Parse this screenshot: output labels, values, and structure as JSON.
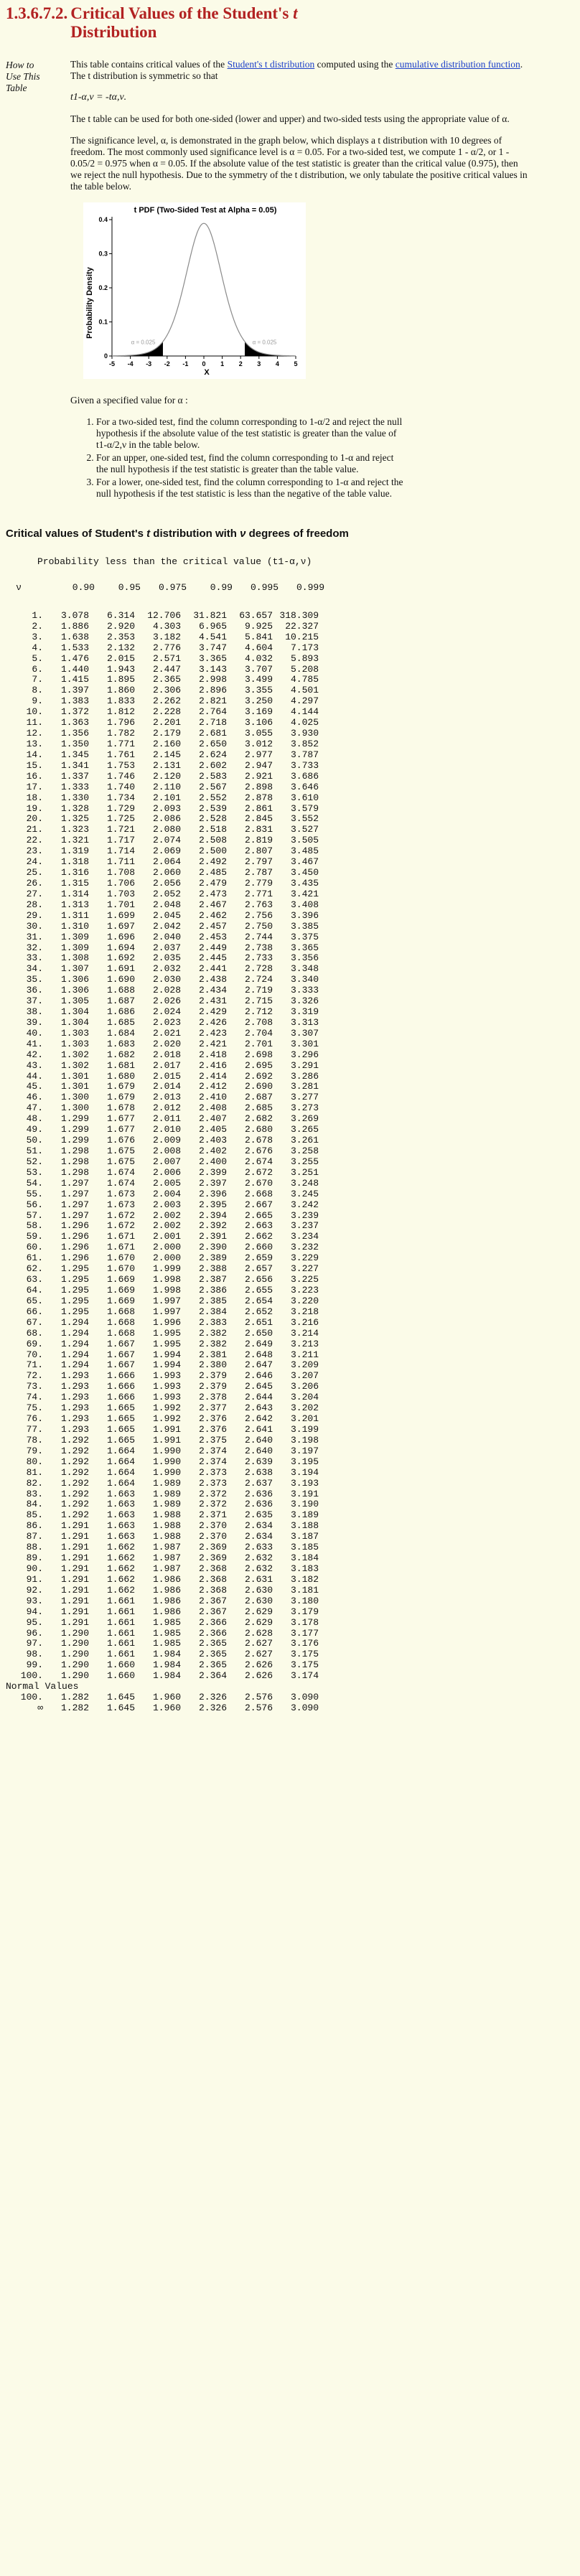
{
  "header": {
    "section_number": "1.3.6.7.2.",
    "title_prefix": "Critical Values of the Student's ",
    "title_t": "t",
    "title_suffix": " Distribution"
  },
  "intro": {
    "side_label": "How to Use This Table",
    "p1_before": "This table contains critical values of the ",
    "link1": "Student's t distribution",
    "p1_mid": " computed using the ",
    "link2": "cumulative distribution function",
    "p1_after": ". The t distribution is symmetric so that",
    "formula": "t1-α,ν = -tα,ν.",
    "p2": "The t table can be used for both one-sided (lower and upper) and two-sided tests using the appropriate value of α.",
    "p3": "The significance level, α, is demonstrated in the graph below, which displays a t distribution with 10 degrees of freedom. The most commonly used significance level is α = 0.05. For a two-sided test, we compute 1 - α/2, or 1 - 0.05/2 = 0.975 when α = 0.05. If the absolute value of the test statistic is greater than the critical value (0.975), then we reject the null hypothesis. Due to the symmetry of the t distribution, we only tabulate the positive critical values in the table below.",
    "given": "Given a specified value for α :",
    "steps": [
      "For a two-sided test, find the column corresponding to 1-α/2 and reject the null hypothesis if the absolute value of the test statistic is greater than the value of t1-α/2,ν in the table below.",
      "For an upper, one-sided test, find the column corresponding to 1-α and reject the null hypothesis if the test statistic is greater than the table value.",
      "For a lower, one-sided test, find the column corresponding to 1-α and reject the null hypothesis if the test statistic is less than the negative of the table value."
    ]
  },
  "chart_data": {
    "type": "area",
    "title": "t PDF (Two-Sided Test at Alpha = 0.05)",
    "xlabel": "X",
    "ylabel": "Probability Density",
    "xlim": [
      -5,
      5
    ],
    "ylim": [
      0,
      0.4
    ],
    "x_ticks": [
      "-5",
      "-4",
      "-3",
      "-2",
      "-1",
      "0",
      "1",
      "2",
      "3",
      "4",
      "5"
    ],
    "y_ticks": [
      "0",
      "0.1",
      "0.2",
      "0.3",
      "0.4"
    ],
    "degrees_of_freedom": 10,
    "critical_value": 2.228,
    "annotations": [
      "α = 0.025",
      "α = 0.025"
    ],
    "grid": false
  },
  "table": {
    "title_prefix": "Critical values of Student's ",
    "title_t": "t",
    "title_mid": " distribution with ",
    "title_nu": "ν",
    "title_suffix": " degrees of freedom",
    "prob_label": "Probability less than the critical value (t1-α,ν)",
    "nu_header": "ν",
    "columns": [
      "0.90",
      "0.95",
      "0.975",
      "0.99",
      "0.995",
      "0.999"
    ],
    "rows": [
      [
        "1.",
        "3.078",
        "6.314",
        "12.706",
        "31.821",
        "63.657",
        "318.309"
      ],
      [
        "2.",
        "1.886",
        "2.920",
        "4.303",
        "6.965",
        "9.925",
        "22.327"
      ],
      [
        "3.",
        "1.638",
        "2.353",
        "3.182",
        "4.541",
        "5.841",
        "10.215"
      ],
      [
        "4.",
        "1.533",
        "2.132",
        "2.776",
        "3.747",
        "4.604",
        "7.173"
      ],
      [
        "5.",
        "1.476",
        "2.015",
        "2.571",
        "3.365",
        "4.032",
        "5.893"
      ],
      [
        "6.",
        "1.440",
        "1.943",
        "2.447",
        "3.143",
        "3.707",
        "5.208"
      ],
      [
        "7.",
        "1.415",
        "1.895",
        "2.365",
        "2.998",
        "3.499",
        "4.785"
      ],
      [
        "8.",
        "1.397",
        "1.860",
        "2.306",
        "2.896",
        "3.355",
        "4.501"
      ],
      [
        "9.",
        "1.383",
        "1.833",
        "2.262",
        "2.821",
        "3.250",
        "4.297"
      ],
      [
        "10.",
        "1.372",
        "1.812",
        "2.228",
        "2.764",
        "3.169",
        "4.144"
      ],
      [
        "11.",
        "1.363",
        "1.796",
        "2.201",
        "2.718",
        "3.106",
        "4.025"
      ],
      [
        "12.",
        "1.356",
        "1.782",
        "2.179",
        "2.681",
        "3.055",
        "3.930"
      ],
      [
        "13.",
        "1.350",
        "1.771",
        "2.160",
        "2.650",
        "3.012",
        "3.852"
      ],
      [
        "14.",
        "1.345",
        "1.761",
        "2.145",
        "2.624",
        "2.977",
        "3.787"
      ],
      [
        "15.",
        "1.341",
        "1.753",
        "2.131",
        "2.602",
        "2.947",
        "3.733"
      ],
      [
        "16.",
        "1.337",
        "1.746",
        "2.120",
        "2.583",
        "2.921",
        "3.686"
      ],
      [
        "17.",
        "1.333",
        "1.740",
        "2.110",
        "2.567",
        "2.898",
        "3.646"
      ],
      [
        "18.",
        "1.330",
        "1.734",
        "2.101",
        "2.552",
        "2.878",
        "3.610"
      ],
      [
        "19.",
        "1.328",
        "1.729",
        "2.093",
        "2.539",
        "2.861",
        "3.579"
      ],
      [
        "20.",
        "1.325",
        "1.725",
        "2.086",
        "2.528",
        "2.845",
        "3.552"
      ],
      [
        "21.",
        "1.323",
        "1.721",
        "2.080",
        "2.518",
        "2.831",
        "3.527"
      ],
      [
        "22.",
        "1.321",
        "1.717",
        "2.074",
        "2.508",
        "2.819",
        "3.505"
      ],
      [
        "23.",
        "1.319",
        "1.714",
        "2.069",
        "2.500",
        "2.807",
        "3.485"
      ],
      [
        "24.",
        "1.318",
        "1.711",
        "2.064",
        "2.492",
        "2.797",
        "3.467"
      ],
      [
        "25.",
        "1.316",
        "1.708",
        "2.060",
        "2.485",
        "2.787",
        "3.450"
      ],
      [
        "26.",
        "1.315",
        "1.706",
        "2.056",
        "2.479",
        "2.779",
        "3.435"
      ],
      [
        "27.",
        "1.314",
        "1.703",
        "2.052",
        "2.473",
        "2.771",
        "3.421"
      ],
      [
        "28.",
        "1.313",
        "1.701",
        "2.048",
        "2.467",
        "2.763",
        "3.408"
      ],
      [
        "29.",
        "1.311",
        "1.699",
        "2.045",
        "2.462",
        "2.756",
        "3.396"
      ],
      [
        "30.",
        "1.310",
        "1.697",
        "2.042",
        "2.457",
        "2.750",
        "3.385"
      ],
      [
        "31.",
        "1.309",
        "1.696",
        "2.040",
        "2.453",
        "2.744",
        "3.375"
      ],
      [
        "32.",
        "1.309",
        "1.694",
        "2.037",
        "2.449",
        "2.738",
        "3.365"
      ],
      [
        "33.",
        "1.308",
        "1.692",
        "2.035",
        "2.445",
        "2.733",
        "3.356"
      ],
      [
        "34.",
        "1.307",
        "1.691",
        "2.032",
        "2.441",
        "2.728",
        "3.348"
      ],
      [
        "35.",
        "1.306",
        "1.690",
        "2.030",
        "2.438",
        "2.724",
        "3.340"
      ],
      [
        "36.",
        "1.306",
        "1.688",
        "2.028",
        "2.434",
        "2.719",
        "3.333"
      ],
      [
        "37.",
        "1.305",
        "1.687",
        "2.026",
        "2.431",
        "2.715",
        "3.326"
      ],
      [
        "38.",
        "1.304",
        "1.686",
        "2.024",
        "2.429",
        "2.712",
        "3.319"
      ],
      [
        "39.",
        "1.304",
        "1.685",
        "2.023",
        "2.426",
        "2.708",
        "3.313"
      ],
      [
        "40.",
        "1.303",
        "1.684",
        "2.021",
        "2.423",
        "2.704",
        "3.307"
      ],
      [
        "41.",
        "1.303",
        "1.683",
        "2.020",
        "2.421",
        "2.701",
        "3.301"
      ],
      [
        "42.",
        "1.302",
        "1.682",
        "2.018",
        "2.418",
        "2.698",
        "3.296"
      ],
      [
        "43.",
        "1.302",
        "1.681",
        "2.017",
        "2.416",
        "2.695",
        "3.291"
      ],
      [
        "44.",
        "1.301",
        "1.680",
        "2.015",
        "2.414",
        "2.692",
        "3.286"
      ],
      [
        "45.",
        "1.301",
        "1.679",
        "2.014",
        "2.412",
        "2.690",
        "3.281"
      ],
      [
        "46.",
        "1.300",
        "1.679",
        "2.013",
        "2.410",
        "2.687",
        "3.277"
      ],
      [
        "47.",
        "1.300",
        "1.678",
        "2.012",
        "2.408",
        "2.685",
        "3.273"
      ],
      [
        "48.",
        "1.299",
        "1.677",
        "2.011",
        "2.407",
        "2.682",
        "3.269"
      ],
      [
        "49.",
        "1.299",
        "1.677",
        "2.010",
        "2.405",
        "2.680",
        "3.265"
      ],
      [
        "50.",
        "1.299",
        "1.676",
        "2.009",
        "2.403",
        "2.678",
        "3.261"
      ],
      [
        "51.",
        "1.298",
        "1.675",
        "2.008",
        "2.402",
        "2.676",
        "3.258"
      ],
      [
        "52.",
        "1.298",
        "1.675",
        "2.007",
        "2.400",
        "2.674",
        "3.255"
      ],
      [
        "53.",
        "1.298",
        "1.674",
        "2.006",
        "2.399",
        "2.672",
        "3.251"
      ],
      [
        "54.",
        "1.297",
        "1.674",
        "2.005",
        "2.397",
        "2.670",
        "3.248"
      ],
      [
        "55.",
        "1.297",
        "1.673",
        "2.004",
        "2.396",
        "2.668",
        "3.245"
      ],
      [
        "56.",
        "1.297",
        "1.673",
        "2.003",
        "2.395",
        "2.667",
        "3.242"
      ],
      [
        "57.",
        "1.297",
        "1.672",
        "2.002",
        "2.394",
        "2.665",
        "3.239"
      ],
      [
        "58.",
        "1.296",
        "1.672",
        "2.002",
        "2.392",
        "2.663",
        "3.237"
      ],
      [
        "59.",
        "1.296",
        "1.671",
        "2.001",
        "2.391",
        "2.662",
        "3.234"
      ],
      [
        "60.",
        "1.296",
        "1.671",
        "2.000",
        "2.390",
        "2.660",
        "3.232"
      ],
      [
        "61.",
        "1.296",
        "1.670",
        "2.000",
        "2.389",
        "2.659",
        "3.229"
      ],
      [
        "62.",
        "1.295",
        "1.670",
        "1.999",
        "2.388",
        "2.657",
        "3.227"
      ],
      [
        "63.",
        "1.295",
        "1.669",
        "1.998",
        "2.387",
        "2.656",
        "3.225"
      ],
      [
        "64.",
        "1.295",
        "1.669",
        "1.998",
        "2.386",
        "2.655",
        "3.223"
      ],
      [
        "65.",
        "1.295",
        "1.669",
        "1.997",
        "2.385",
        "2.654",
        "3.220"
      ],
      [
        "66.",
        "1.295",
        "1.668",
        "1.997",
        "2.384",
        "2.652",
        "3.218"
      ],
      [
        "67.",
        "1.294",
        "1.668",
        "1.996",
        "2.383",
        "2.651",
        "3.216"
      ],
      [
        "68.",
        "1.294",
        "1.668",
        "1.995",
        "2.382",
        "2.650",
        "3.214"
      ],
      [
        "69.",
        "1.294",
        "1.667",
        "1.995",
        "2.382",
        "2.649",
        "3.213"
      ],
      [
        "70.",
        "1.294",
        "1.667",
        "1.994",
        "2.381",
        "2.648",
        "3.211"
      ],
      [
        "71.",
        "1.294",
        "1.667",
        "1.994",
        "2.380",
        "2.647",
        "3.209"
      ],
      [
        "72.",
        "1.293",
        "1.666",
        "1.993",
        "2.379",
        "2.646",
        "3.207"
      ],
      [
        "73.",
        "1.293",
        "1.666",
        "1.993",
        "2.379",
        "2.645",
        "3.206"
      ],
      [
        "74.",
        "1.293",
        "1.666",
        "1.993",
        "2.378",
        "2.644",
        "3.204"
      ],
      [
        "75.",
        "1.293",
        "1.665",
        "1.992",
        "2.377",
        "2.643",
        "3.202"
      ],
      [
        "76.",
        "1.293",
        "1.665",
        "1.992",
        "2.376",
        "2.642",
        "3.201"
      ],
      [
        "77.",
        "1.293",
        "1.665",
        "1.991",
        "2.376",
        "2.641",
        "3.199"
      ],
      [
        "78.",
        "1.292",
        "1.665",
        "1.991",
        "2.375",
        "2.640",
        "3.198"
      ],
      [
        "79.",
        "1.292",
        "1.664",
        "1.990",
        "2.374",
        "2.640",
        "3.197"
      ],
      [
        "80.",
        "1.292",
        "1.664",
        "1.990",
        "2.374",
        "2.639",
        "3.195"
      ],
      [
        "81.",
        "1.292",
        "1.664",
        "1.990",
        "2.373",
        "2.638",
        "3.194"
      ],
      [
        "82.",
        "1.292",
        "1.664",
        "1.989",
        "2.373",
        "2.637",
        "3.193"
      ],
      [
        "83.",
        "1.292",
        "1.663",
        "1.989",
        "2.372",
        "2.636",
        "3.191"
      ],
      [
        "84.",
        "1.292",
        "1.663",
        "1.989",
        "2.372",
        "2.636",
        "3.190"
      ],
      [
        "85.",
        "1.292",
        "1.663",
        "1.988",
        "2.371",
        "2.635",
        "3.189"
      ],
      [
        "86.",
        "1.291",
        "1.663",
        "1.988",
        "2.370",
        "2.634",
        "3.188"
      ],
      [
        "87.",
        "1.291",
        "1.663",
        "1.988",
        "2.370",
        "2.634",
        "3.187"
      ],
      [
        "88.",
        "1.291",
        "1.662",
        "1.987",
        "2.369",
        "2.633",
        "3.185"
      ],
      [
        "89.",
        "1.291",
        "1.662",
        "1.987",
        "2.369",
        "2.632",
        "3.184"
      ],
      [
        "90.",
        "1.291",
        "1.662",
        "1.987",
        "2.368",
        "2.632",
        "3.183"
      ],
      [
        "91.",
        "1.291",
        "1.662",
        "1.986",
        "2.368",
        "2.631",
        "3.182"
      ],
      [
        "92.",
        "1.291",
        "1.662",
        "1.986",
        "2.368",
        "2.630",
        "3.181"
      ],
      [
        "93.",
        "1.291",
        "1.661",
        "1.986",
        "2.367",
        "2.630",
        "3.180"
      ],
      [
        "94.",
        "1.291",
        "1.661",
        "1.986",
        "2.367",
        "2.629",
        "3.179"
      ],
      [
        "95.",
        "1.291",
        "1.661",
        "1.985",
        "2.366",
        "2.629",
        "3.178"
      ],
      [
        "96.",
        "1.290",
        "1.661",
        "1.985",
        "2.366",
        "2.628",
        "3.177"
      ],
      [
        "97.",
        "1.290",
        "1.661",
        "1.985",
        "2.365",
        "2.627",
        "3.176"
      ],
      [
        "98.",
        "1.290",
        "1.661",
        "1.984",
        "2.365",
        "2.627",
        "3.175"
      ],
      [
        "99.",
        "1.290",
        "1.660",
        "1.984",
        "2.365",
        "2.626",
        "3.175"
      ],
      [
        "100.",
        "1.290",
        "1.660",
        "1.984",
        "2.364",
        "2.626",
        "3.174"
      ]
    ],
    "normal_label": "Normal Values",
    "normal_rows": [
      [
        "100.",
        "1.282",
        "1.645",
        "1.960",
        "2.326",
        "2.576",
        "3.090"
      ],
      [
        "∞",
        "1.282",
        "1.645",
        "1.960",
        "2.326",
        "2.576",
        "3.090"
      ]
    ]
  }
}
